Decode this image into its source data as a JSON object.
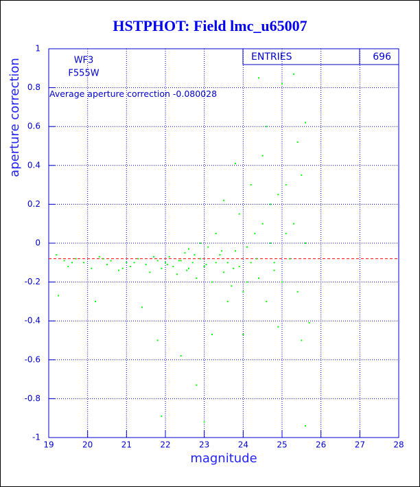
{
  "chart_data": {
    "type": "scatter",
    "title": "HSTPHOT: Field lmc_u65007",
    "x_label": "magnitude",
    "y_label": "aperture correction",
    "annotations": [
      "WF3",
      "F555W"
    ],
    "mean_label": "Average aperture correction",
    "mean_value": -0.080028,
    "mean_color": "#ff0000",
    "stats": {
      "label": "ENTRIES",
      "value": 696
    },
    "xlim": [
      19,
      28
    ],
    "ylim": [
      -1,
      1
    ],
    "xticks": [
      19,
      20,
      21,
      22,
      23,
      24,
      25,
      26,
      27,
      28
    ],
    "yticks": [
      -1,
      -0.8,
      -0.6,
      -0.4,
      -0.2,
      0,
      0.2,
      0.4,
      0.6,
      0.8,
      1
    ],
    "grid": true,
    "series": [
      {
        "color": "#00ff00",
        "x": [
          19.2,
          19.4,
          19.5,
          19.7,
          19.9,
          20.1,
          20.3,
          20.5,
          20.6,
          20.8,
          21.0,
          21.1,
          21.3,
          21.5,
          21.6,
          21.8,
          21.9,
          22.0,
          22.1,
          22.2,
          22.3,
          22.4,
          22.5,
          22.6,
          22.7,
          22.8,
          22.9,
          23.0,
          23.1,
          23.2,
          23.3,
          23.4,
          23.5,
          23.6,
          23.7,
          23.8,
          23.9,
          24.0,
          24.1,
          24.2,
          24.3,
          24.4,
          24.5,
          24.6,
          24.7,
          24.8,
          24.9,
          25.0,
          25.1,
          25.2,
          25.3,
          25.4,
          25.5,
          25.6,
          19.25,
          20.2,
          21.4,
          21.8,
          21.9,
          22.4,
          22.8,
          23.0,
          23.2,
          23.8,
          24.0,
          24.4,
          24.5,
          24.6,
          24.9,
          25.0,
          25.3,
          25.4,
          25.5,
          25.6,
          25.6,
          25.7,
          24.7,
          24.2,
          23.9,
          23.5,
          23.6,
          24.1,
          24.8,
          25.1,
          23.3,
          22.9,
          22.6,
          19.6,
          20.4,
          20.9,
          21.2,
          21.7,
          22.05,
          22.35,
          22.55,
          22.75,
          23.05,
          23.45,
          23.75,
          24.35
        ],
        "y": [
          -0.06,
          -0.09,
          -0.12,
          -0.08,
          -0.1,
          -0.13,
          -0.07,
          -0.11,
          -0.09,
          -0.14,
          -0.1,
          -0.12,
          -0.08,
          -0.11,
          -0.15,
          -0.09,
          -0.13,
          -0.1,
          -0.07,
          -0.12,
          -0.16,
          -0.09,
          -0.05,
          -0.13,
          -0.1,
          -0.18,
          -0.08,
          -0.12,
          -0.02,
          -0.2,
          -0.1,
          -0.06,
          -0.15,
          -0.1,
          -0.22,
          -0.04,
          -0.12,
          -0.25,
          -0.02,
          -0.1,
          0.05,
          -0.18,
          0.1,
          -0.3,
          0.0,
          -0.14,
          0.25,
          -0.2,
          0.3,
          -0.08,
          0.1,
          -0.25,
          0.35,
          0.0,
          -0.27,
          -0.3,
          -0.33,
          -0.5,
          -0.89,
          -0.58,
          -0.73,
          -0.92,
          -0.47,
          0.41,
          -0.47,
          0.85,
          0.45,
          0.6,
          -0.43,
          0.82,
          0.87,
          0.52,
          -0.5,
          0.62,
          -0.94,
          -0.41,
          0.2,
          0.3,
          0.15,
          0.22,
          -0.3,
          -0.2,
          -0.1,
          0.05,
          0.05,
          0.0,
          -0.03,
          -0.1,
          -0.08,
          -0.13,
          -0.1,
          -0.07,
          -0.11,
          -0.09,
          -0.14,
          -0.06,
          -0.11,
          -0.04,
          -0.13,
          -0.08
        ]
      }
    ]
  }
}
